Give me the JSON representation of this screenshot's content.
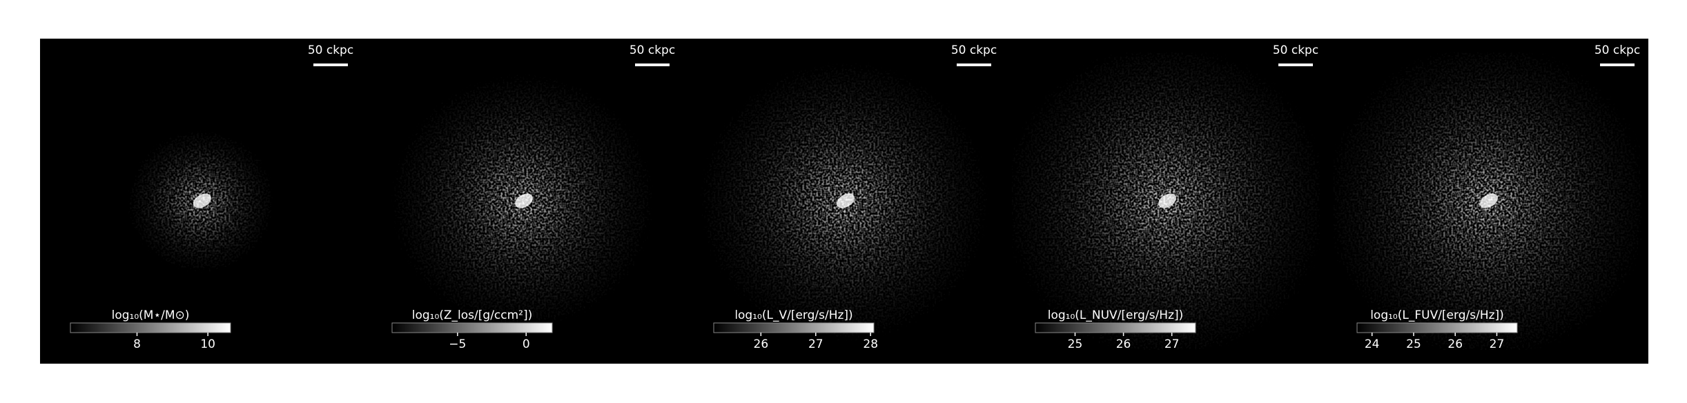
{
  "panels": [
    {
      "scale_label": "50 ckpc",
      "cbar": {
        "label": "log₁₀(M⋆/M⊙)",
        "lim": [
          6.12,
          10.64
        ],
        "ticks": [
          8,
          10
        ]
      },
      "spread": 0.28
    },
    {
      "scale_label": "50 ckpc",
      "cbar": {
        "label": "log₁₀(Z_los/[g/ccm²])",
        "lim": [
          -9.77,
          1.9
        ],
        "ticks": [
          {
            "value": -5,
            "label": "−5"
          },
          0
        ]
      },
      "spread": 0.5
    },
    {
      "scale_label": "50 ckpc",
      "cbar": {
        "label": "log₁₀(L_V/[erg/s/Hz])",
        "lim": [
          25.14,
          28.06
        ],
        "ticks": [
          26,
          27,
          28
        ]
      },
      "spread": 0.55
    },
    {
      "scale_label": "50 ckpc",
      "cbar": {
        "label": "log₁₀(L_NUV/[erg/s/Hz])",
        "lim": [
          24.18,
          27.49
        ],
        "ticks": [
          25,
          26,
          27
        ]
      },
      "spread": 0.62
    },
    {
      "scale_label": "50 ckpc",
      "cbar": {
        "label": "log₁₀(L_FUV/[erg/s/Hz])",
        "lim": [
          23.64,
          27.49
        ],
        "ticks": [
          24,
          25,
          26,
          27
        ]
      },
      "spread": 0.62
    }
  ]
}
